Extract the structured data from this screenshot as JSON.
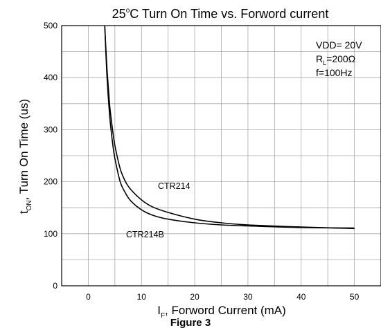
{
  "chart_data": {
    "type": "line",
    "title": {
      "pre": "25",
      "sup": "o",
      "post": "C Turn On Time vs. Forword current"
    },
    "xlabel": {
      "main": "I",
      "sub": "F",
      "rest": ", Forword Current (mA)"
    },
    "ylabel": {
      "main": "t",
      "sub": "ON",
      "rest": ", Turn On Time (us)"
    },
    "xlim": [
      -5,
      55
    ],
    "ylim": [
      0,
      500
    ],
    "xticks": [
      "0",
      "10",
      "20",
      "30",
      "40",
      "50"
    ],
    "yticks": [
      "0",
      "100",
      "200",
      "300",
      "400",
      "500"
    ],
    "grid": true,
    "conditions": [
      {
        "main": "VDD= 20V"
      },
      {
        "main": "R",
        "sub": "L",
        "rest": "=200Ω"
      },
      {
        "main": "f=100Hz"
      }
    ],
    "series": [
      {
        "name": "CTR214",
        "x": [
          3.1,
          3.5,
          4,
          4.5,
          5,
          6,
          7,
          8,
          10,
          12,
          15,
          20,
          25,
          30,
          40,
          50
        ],
        "y": [
          500,
          420,
          350,
          305,
          270,
          225,
          200,
          185,
          165,
          152,
          141,
          128,
          121,
          117,
          113,
          110
        ]
      },
      {
        "name": "CTR214B",
        "x": [
          3.1,
          3.5,
          4,
          4.5,
          5,
          6,
          7,
          8,
          10,
          12,
          15,
          20,
          25,
          30,
          40,
          50
        ],
        "y": [
          500,
          405,
          330,
          280,
          245,
          200,
          178,
          163,
          146,
          136,
          128,
          121,
          117,
          115,
          112,
          111
        ]
      }
    ],
    "labels": [
      {
        "text": "CTR214",
        "series": "CTR214"
      },
      {
        "text": "CTR214B",
        "series": "CTR214B"
      }
    ]
  },
  "caption": "Figure 3"
}
